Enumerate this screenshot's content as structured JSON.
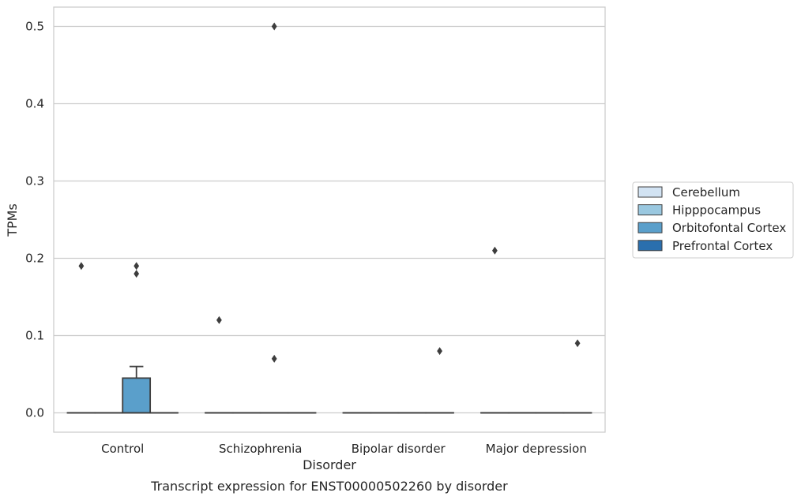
{
  "chart_data": {
    "type": "box",
    "xlabel": "Disorder",
    "ylabel": "TPMs",
    "caption": "Transcript expression for ENST00000502260 by disorder",
    "ylim": [
      -0.025,
      0.525
    ],
    "yticks": [
      "0.0",
      "0.1",
      "0.2",
      "0.3",
      "0.4",
      "0.5"
    ],
    "ytick_values": [
      0.0,
      0.1,
      0.2,
      0.3,
      0.4,
      0.5
    ],
    "grid": true,
    "legend_position": "right",
    "categories": [
      "Control",
      "Schizophrenia",
      "Bipolar disorder",
      "Major depression"
    ],
    "series": [
      {
        "name": "Cerebellum",
        "color": "#d2e3f3"
      },
      {
        "name": "Hipppocampus",
        "color": "#9ac8e0"
      },
      {
        "name": "Orbitofontal Cortex",
        "color": "#5a9fcb"
      },
      {
        "name": "Prefrontal Cortex",
        "color": "#2a6fae"
      }
    ],
    "boxes": [
      [
        {
          "q1": 0,
          "median": 0,
          "q3": 0,
          "whisker_low": 0,
          "whisker_high": 0,
          "outliers": [
            0.19
          ]
        },
        {
          "q1": 0,
          "median": 0,
          "q3": 0,
          "whisker_low": 0,
          "whisker_high": 0,
          "outliers": []
        },
        {
          "q1": 0,
          "median": 0,
          "q3": 0.045,
          "whisker_low": 0,
          "whisker_high": 0.06,
          "outliers": [
            0.19,
            0.18
          ]
        },
        {
          "q1": 0,
          "median": 0,
          "q3": 0,
          "whisker_low": 0,
          "whisker_high": 0,
          "outliers": []
        }
      ],
      [
        {
          "q1": 0,
          "median": 0,
          "q3": 0,
          "whisker_low": 0,
          "whisker_high": 0,
          "outliers": [
            0.12
          ]
        },
        {
          "q1": 0,
          "median": 0,
          "q3": 0,
          "whisker_low": 0,
          "whisker_high": 0,
          "outliers": []
        },
        {
          "q1": 0,
          "median": 0,
          "q3": 0,
          "whisker_low": 0,
          "whisker_high": 0,
          "outliers": [
            0.5,
            0.07
          ]
        },
        {
          "q1": 0,
          "median": 0,
          "q3": 0,
          "whisker_low": 0,
          "whisker_high": 0,
          "outliers": []
        }
      ],
      [
        {
          "q1": 0,
          "median": 0,
          "q3": 0,
          "whisker_low": 0,
          "whisker_high": 0,
          "outliers": []
        },
        {
          "q1": 0,
          "median": 0,
          "q3": 0,
          "whisker_low": 0,
          "whisker_high": 0,
          "outliers": []
        },
        {
          "q1": 0,
          "median": 0,
          "q3": 0,
          "whisker_low": 0,
          "whisker_high": 0,
          "outliers": []
        },
        {
          "q1": 0,
          "median": 0,
          "q3": 0,
          "whisker_low": 0,
          "whisker_high": 0,
          "outliers": [
            0.08
          ]
        }
      ],
      [
        {
          "q1": 0,
          "median": 0,
          "q3": 0,
          "whisker_low": 0,
          "whisker_high": 0,
          "outliers": [
            0.21
          ]
        },
        {
          "q1": 0,
          "median": 0,
          "q3": 0,
          "whisker_low": 0,
          "whisker_high": 0,
          "outliers": []
        },
        {
          "q1": 0,
          "median": 0,
          "q3": 0,
          "whisker_low": 0,
          "whisker_high": 0,
          "outliers": []
        },
        {
          "q1": 0,
          "median": 0,
          "q3": 0,
          "whisker_low": 0,
          "whisker_high": 0,
          "outliers": [
            0.09
          ]
        }
      ]
    ]
  }
}
